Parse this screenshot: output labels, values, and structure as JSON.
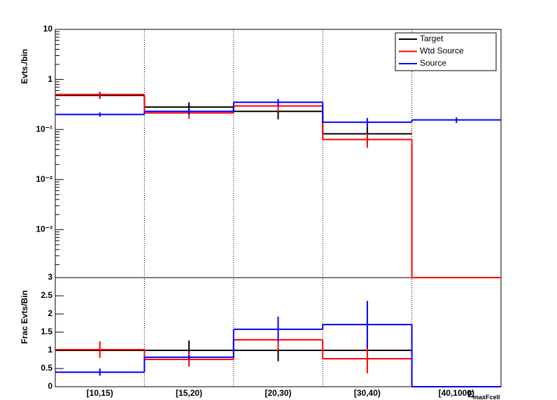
{
  "chart_data": [
    {
      "type": "step-histogram",
      "y_label": "Evts./bin",
      "log_scale": true,
      "ylim": [
        0.00011,
        10
      ],
      "yticks": [
        {
          "value": 10,
          "label": "10"
        },
        {
          "value": 1,
          "label": "1"
        },
        {
          "value": 0.1,
          "label": "10⁻¹"
        },
        {
          "value": 0.01,
          "label": "10⁻²"
        },
        {
          "value": 0.001,
          "label": "10⁻³"
        }
      ],
      "legend": "top-right",
      "series": [
        {
          "name": "Target",
          "color": "#000000",
          "values": [
            0.48,
            0.28,
            0.23,
            0.082,
            null
          ],
          "errors": [
            0.07,
            0.07,
            0.07,
            0.03,
            null
          ]
        },
        {
          "name": "Wtd Source",
          "color": "#ff0000",
          "values": [
            0.5,
            0.214,
            0.295,
            0.063,
            0
          ],
          "errors": [
            0.07,
            0.05,
            0.07,
            0.02,
            null
          ]
        },
        {
          "name": "Source",
          "color": "#0000ff",
          "values": [
            0.2,
            0.23,
            0.35,
            0.14,
            0.155
          ],
          "errors": [
            0.02,
            0.03,
            0.06,
            0.03,
            0.02
          ]
        }
      ]
    },
    {
      "type": "step-histogram",
      "y_label": "Frac Evts/Bin",
      "x_label": "E",
      "x_label_sub": "maxFcell",
      "categories": [
        "[10,15)",
        "[15,20)",
        "[20,30)",
        "[30,40)",
        "[40,1000)"
      ],
      "ylim": [
        0,
        3
      ],
      "yticks": [
        0,
        0.5,
        1,
        1.5,
        2,
        2.5,
        3
      ],
      "series": [
        {
          "name": "Target",
          "color": "#000000",
          "values": [
            1,
            1,
            1,
            1,
            null
          ],
          "errors": [
            0,
            0.27,
            0.3,
            0,
            null
          ]
        },
        {
          "name": "Wtd Source",
          "color": "#ff0000",
          "values": [
            1.02,
            0.75,
            1.29,
            0.77,
            null
          ],
          "errors": [
            0.23,
            0.2,
            0.3,
            0.4,
            null
          ]
        },
        {
          "name": "Source",
          "color": "#0000ff",
          "values": [
            0.4,
            0.81,
            1.58,
            1.71,
            0
          ],
          "errors": [
            0.1,
            0.05,
            0.35,
            0.65,
            null
          ]
        }
      ]
    }
  ]
}
